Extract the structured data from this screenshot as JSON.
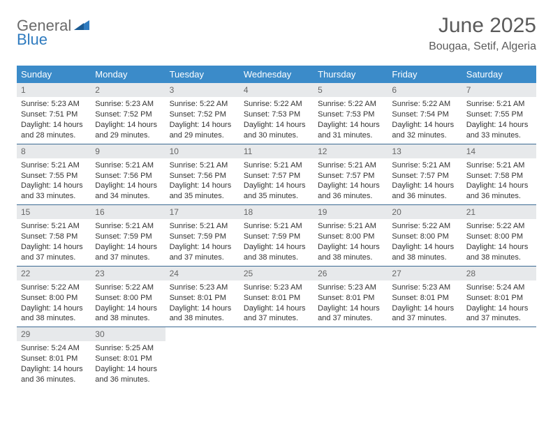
{
  "logo": {
    "text1": "General",
    "text2": "Blue"
  },
  "title": "June 2025",
  "location": "Bougaa, Setif, Algeria",
  "colors": {
    "header_bg": "#3b8bc9",
    "header_text": "#ffffff",
    "daynum_bg": "#e7e9eb",
    "daynum_text": "#666666",
    "cell_border": "#3b6a93",
    "body_text": "#333333",
    "logo_gray": "#6a6a6a",
    "logo_blue": "#2f7bbf",
    "title_color": "#5a5a5a"
  },
  "weekdays": [
    "Sunday",
    "Monday",
    "Tuesday",
    "Wednesday",
    "Thursday",
    "Friday",
    "Saturday"
  ],
  "weeks": [
    [
      {
        "n": "1",
        "sr": "5:23 AM",
        "ss": "7:51 PM",
        "dl": "14 hours and 28 minutes."
      },
      {
        "n": "2",
        "sr": "5:23 AM",
        "ss": "7:52 PM",
        "dl": "14 hours and 29 minutes."
      },
      {
        "n": "3",
        "sr": "5:22 AM",
        "ss": "7:52 PM",
        "dl": "14 hours and 29 minutes."
      },
      {
        "n": "4",
        "sr": "5:22 AM",
        "ss": "7:53 PM",
        "dl": "14 hours and 30 minutes."
      },
      {
        "n": "5",
        "sr": "5:22 AM",
        "ss": "7:53 PM",
        "dl": "14 hours and 31 minutes."
      },
      {
        "n": "6",
        "sr": "5:22 AM",
        "ss": "7:54 PM",
        "dl": "14 hours and 32 minutes."
      },
      {
        "n": "7",
        "sr": "5:21 AM",
        "ss": "7:55 PM",
        "dl": "14 hours and 33 minutes."
      }
    ],
    [
      {
        "n": "8",
        "sr": "5:21 AM",
        "ss": "7:55 PM",
        "dl": "14 hours and 33 minutes."
      },
      {
        "n": "9",
        "sr": "5:21 AM",
        "ss": "7:56 PM",
        "dl": "14 hours and 34 minutes."
      },
      {
        "n": "10",
        "sr": "5:21 AM",
        "ss": "7:56 PM",
        "dl": "14 hours and 35 minutes."
      },
      {
        "n": "11",
        "sr": "5:21 AM",
        "ss": "7:57 PM",
        "dl": "14 hours and 35 minutes."
      },
      {
        "n": "12",
        "sr": "5:21 AM",
        "ss": "7:57 PM",
        "dl": "14 hours and 36 minutes."
      },
      {
        "n": "13",
        "sr": "5:21 AM",
        "ss": "7:57 PM",
        "dl": "14 hours and 36 minutes."
      },
      {
        "n": "14",
        "sr": "5:21 AM",
        "ss": "7:58 PM",
        "dl": "14 hours and 36 minutes."
      }
    ],
    [
      {
        "n": "15",
        "sr": "5:21 AM",
        "ss": "7:58 PM",
        "dl": "14 hours and 37 minutes."
      },
      {
        "n": "16",
        "sr": "5:21 AM",
        "ss": "7:59 PM",
        "dl": "14 hours and 37 minutes."
      },
      {
        "n": "17",
        "sr": "5:21 AM",
        "ss": "7:59 PM",
        "dl": "14 hours and 37 minutes."
      },
      {
        "n": "18",
        "sr": "5:21 AM",
        "ss": "7:59 PM",
        "dl": "14 hours and 38 minutes."
      },
      {
        "n": "19",
        "sr": "5:21 AM",
        "ss": "8:00 PM",
        "dl": "14 hours and 38 minutes."
      },
      {
        "n": "20",
        "sr": "5:22 AM",
        "ss": "8:00 PM",
        "dl": "14 hours and 38 minutes."
      },
      {
        "n": "21",
        "sr": "5:22 AM",
        "ss": "8:00 PM",
        "dl": "14 hours and 38 minutes."
      }
    ],
    [
      {
        "n": "22",
        "sr": "5:22 AM",
        "ss": "8:00 PM",
        "dl": "14 hours and 38 minutes."
      },
      {
        "n": "23",
        "sr": "5:22 AM",
        "ss": "8:00 PM",
        "dl": "14 hours and 38 minutes."
      },
      {
        "n": "24",
        "sr": "5:23 AM",
        "ss": "8:01 PM",
        "dl": "14 hours and 38 minutes."
      },
      {
        "n": "25",
        "sr": "5:23 AM",
        "ss": "8:01 PM",
        "dl": "14 hours and 37 minutes."
      },
      {
        "n": "26",
        "sr": "5:23 AM",
        "ss": "8:01 PM",
        "dl": "14 hours and 37 minutes."
      },
      {
        "n": "27",
        "sr": "5:23 AM",
        "ss": "8:01 PM",
        "dl": "14 hours and 37 minutes."
      },
      {
        "n": "28",
        "sr": "5:24 AM",
        "ss": "8:01 PM",
        "dl": "14 hours and 37 minutes."
      }
    ],
    [
      {
        "n": "29",
        "sr": "5:24 AM",
        "ss": "8:01 PM",
        "dl": "14 hours and 36 minutes."
      },
      {
        "n": "30",
        "sr": "5:25 AM",
        "ss": "8:01 PM",
        "dl": "14 hours and 36 minutes."
      },
      null,
      null,
      null,
      null,
      null
    ]
  ],
  "labels": {
    "sunrise": "Sunrise: ",
    "sunset": "Sunset: ",
    "daylight": "Daylight: "
  }
}
